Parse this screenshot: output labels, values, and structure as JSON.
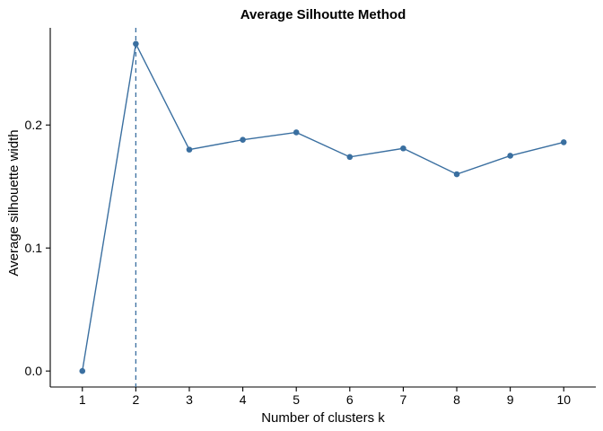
{
  "chart_data": {
    "type": "line",
    "title": "Average Silhoutte Method",
    "xlabel": "Number of clusters k",
    "ylabel": "Average silhouette width",
    "x": [
      1,
      2,
      3,
      4,
      5,
      6,
      7,
      8,
      9,
      10
    ],
    "series": [
      {
        "values": [
          0.0,
          0.266,
          0.18,
          0.188,
          0.194,
          0.174,
          0.181,
          0.16,
          0.175,
          0.186
        ]
      }
    ],
    "xticks": [
      "1",
      "2",
      "3",
      "4",
      "5",
      "6",
      "7",
      "8",
      "9",
      "10"
    ],
    "yticks": [
      0.0,
      0.1,
      0.2
    ],
    "ytick_labels": [
      "0.0",
      "0.1",
      "0.2"
    ],
    "ylim": [
      -0.013,
      0.279
    ],
    "xlim": [
      0.4,
      10.6
    ],
    "vline_x": 2,
    "grid": false,
    "legend": "none",
    "colors": {
      "series": "#3a6fa0",
      "axis": "#000000"
    }
  }
}
